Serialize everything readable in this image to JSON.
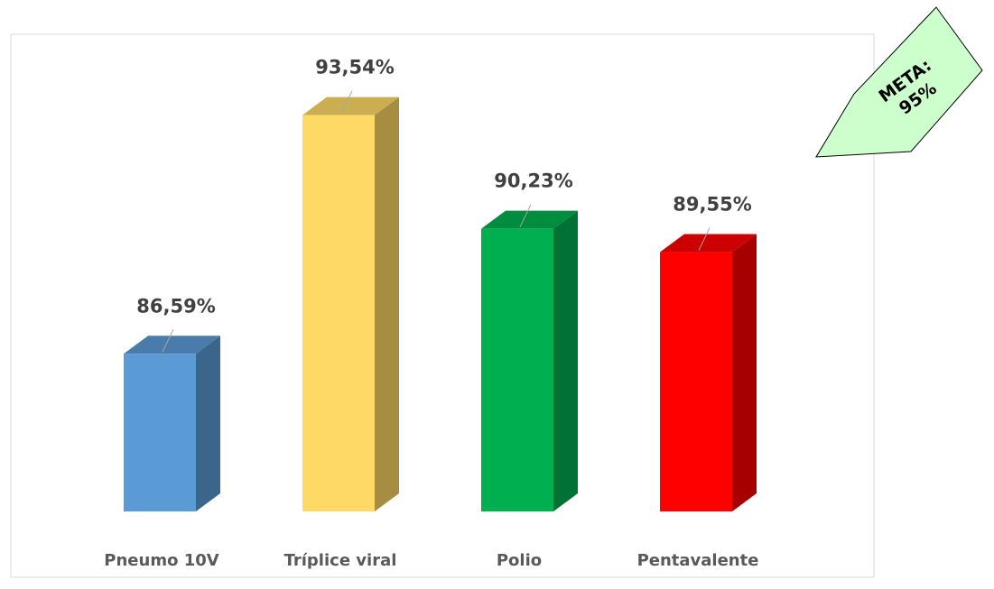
{
  "chart_data": {
    "type": "bar3d",
    "categories": [
      "Pneumo 10V",
      "Tríplice viral",
      "Polio",
      "Pentavalente"
    ],
    "values": [
      86.59,
      93.54,
      90.23,
      89.55
    ],
    "value_labels": [
      "86,59%",
      "93,54%",
      "90,23%",
      "89,55%"
    ],
    "colors": [
      "#5b9bd5",
      "#ffd966",
      "#00b050",
      "#ff0000"
    ],
    "ylim": [
      82,
      96
    ],
    "annotation": [
      "META:",
      "95%"
    ],
    "annotation_color": "#ccffcc"
  }
}
